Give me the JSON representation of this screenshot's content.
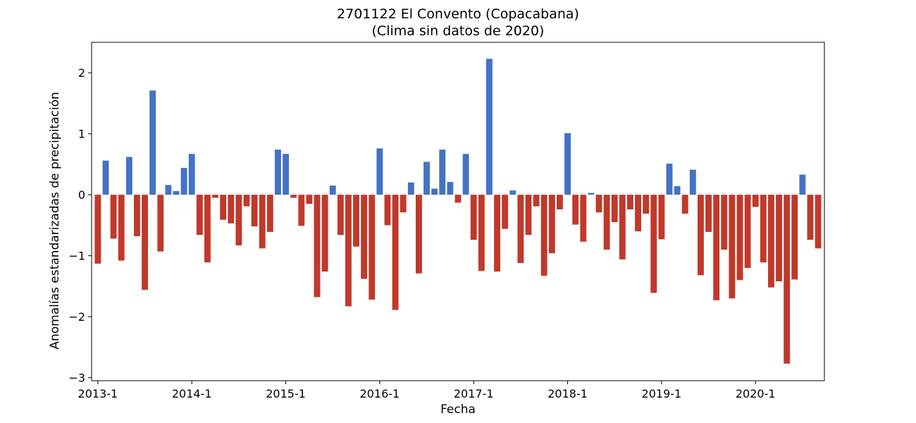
{
  "chart_data": {
    "type": "bar",
    "title": "2701122 El Convento (Copacabana)",
    "subtitle": "(Clima sin datos de 2020)",
    "xlabel": "Fecha",
    "ylabel": "Anomalías estandarizadas de precipitación",
    "ylim": [
      -3.05,
      2.5
    ],
    "yticks": [
      2,
      1,
      0,
      -1,
      -2,
      -3
    ],
    "ytick_labels": [
      "2",
      "1",
      "0",
      "−1",
      "−2",
      "−3"
    ],
    "xtick_labels": [
      "2013-1",
      "2014-1",
      "2015-1",
      "2016-1",
      "2017-1",
      "2018-1",
      "2019-1",
      "2020-1"
    ],
    "start": "2013-1",
    "grid": false,
    "colors": {
      "positive": "#4472C4",
      "negative": "#C0392B"
    },
    "values": [
      -1.13,
      0.56,
      -0.72,
      -1.08,
      0.62,
      -0.68,
      -1.56,
      1.71,
      -0.93,
      0.16,
      0.06,
      0.44,
      0.67,
      -0.66,
      -1.11,
      -0.05,
      -0.41,
      -0.47,
      -0.83,
      -0.19,
      -0.52,
      -0.88,
      -0.61,
      0.74,
      0.67,
      -0.05,
      -0.51,
      -0.15,
      -1.68,
      -1.26,
      0.15,
      -0.66,
      -1.83,
      -0.85,
      -1.38,
      -1.72,
      0.76,
      -0.5,
      -1.89,
      -0.29,
      0.2,
      -1.29,
      0.54,
      0.1,
      0.74,
      0.21,
      -0.13,
      0.67,
      -0.74,
      -1.25,
      2.23,
      -1.26,
      -0.56,
      0.07,
      -1.12,
      -0.66,
      -0.19,
      -1.33,
      -0.96,
      -0.24,
      1.01,
      -0.49,
      -0.77,
      0.03,
      -0.29,
      -0.9,
      -0.45,
      -1.06,
      -0.24,
      -0.6,
      -0.31,
      -1.61,
      -0.73,
      0.51,
      0.14,
      -0.31,
      0.41,
      -1.32,
      -0.61,
      -1.73,
      -0.9,
      -1.7,
      -1.4,
      -1.2,
      -0.2,
      -1.11,
      -1.52,
      -1.42,
      -2.77,
      -1.39,
      0.33,
      -0.74,
      -0.88
    ]
  }
}
